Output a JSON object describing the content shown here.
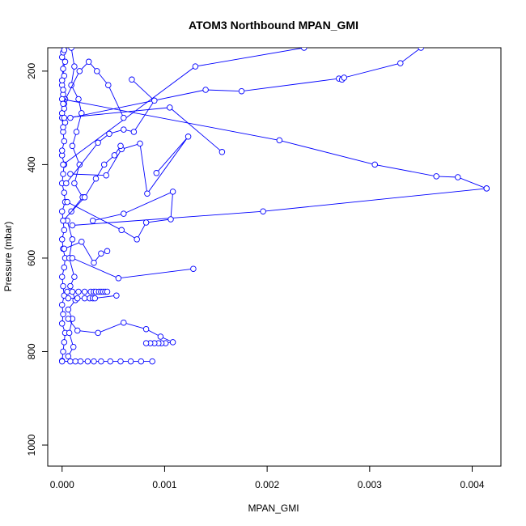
{
  "chart_data": {
    "type": "line",
    "title": "ATOM3 Northbound MPAN_GMI",
    "xlabel": "MPAN_GMI",
    "ylabel": "Pressure (mbar)",
    "xlim": [
      -0.00014,
      0.00428
    ],
    "ylim": [
      1045,
      150
    ],
    "y_reversed": true,
    "x_ticks": [
      0.0,
      0.001,
      0.002,
      0.003,
      0.004
    ],
    "x_tick_labels": [
      "0.000",
      "0.001",
      "0.002",
      "0.003",
      "0.004"
    ],
    "y_ticks": [
      200,
      400,
      600,
      800,
      1000
    ],
    "y_tick_labels": [
      "200",
      "400",
      "600",
      "800",
      "1000"
    ],
    "grid": false,
    "legend": "none",
    "marker": "open-circle",
    "color": "#0000ff",
    "series": [
      {
        "x": [
          0.0,
          1e-05,
          2e-05,
          3e-05,
          0.0,
          1e-05,
          0.0,
          2e-05,
          1e-05,
          0.0,
          2e-05,
          3e-05,
          1e-05,
          0.0,
          2e-05,
          1e-05,
          0.0,
          3e-05,
          2e-05,
          0.0,
          1e-05,
          2e-05,
          0.0
        ],
        "y": [
          820,
          800,
          780,
          760,
          740,
          720,
          700,
          680,
          660,
          640,
          620,
          600,
          580,
          560,
          540,
          520,
          500,
          480,
          460,
          440,
          420,
          400,
          380
        ]
      },
      {
        "x": [
          0.0,
          2e-05,
          1e-05,
          3e-05,
          0.0,
          2e-05,
          1e-05,
          0.0,
          2e-05,
          1e-05,
          3e-05,
          0.0,
          1e-05,
          2e-05,
          0.0,
          1e-05,
          3e-05,
          2e-05,
          0.0,
          1e-05
        ],
        "y": [
          370,
          350,
          330,
          310,
          290,
          270,
          250,
          230,
          210,
          195,
          180,
          170,
          160,
          155,
          220,
          240,
          260,
          280,
          300,
          320
        ]
      },
      {
        "x": [
          9e-05,
          0.00012,
          9e-05,
          0.00016,
          0.00019,
          0.00014,
          0.0001,
          0.00017,
          0.00012,
          0.0002,
          9e-05
        ],
        "y": [
          150,
          190,
          230,
          260,
          290,
          330,
          360,
          400,
          440,
          470,
          500
        ]
      },
      {
        "x": [
          5e-05,
          0.0001,
          7e-05,
          0.00012,
          8e-05,
          0.00013,
          6e-05,
          0.0001,
          7e-05,
          0.00011,
          6e-05
        ],
        "y": [
          520,
          560,
          600,
          640,
          660,
          690,
          710,
          730,
          760,
          790,
          810
        ]
      },
      {
        "x": [
          0.0,
          8e-05,
          0.00013,
          0.00018,
          0.00025,
          0.00031,
          0.00038,
          0.00047,
          0.00057,
          0.00067,
          0.00077,
          0.00088
        ],
        "y": [
          821,
          821,
          821,
          821,
          821,
          821,
          821,
          821,
          821,
          821,
          821,
          821
        ]
      },
      {
        "x": [
          6e-05,
          0.00015,
          0.00035,
          0.0006,
          0.00082,
          0.00096,
          0.00108,
          0.00101,
          0.00097,
          0.00094,
          0.0009,
          0.00086,
          0.00082
        ],
        "y": [
          730,
          755,
          760,
          738,
          752,
          768,
          780,
          782,
          782,
          782,
          782,
          782,
          782
        ]
      },
      {
        "x": [
          5e-05,
          0.0001,
          0.00016,
          0.00022,
          0.00028,
          0.00031,
          0.00033,
          0.00036,
          0.00038,
          0.0004,
          0.00042,
          0.00044
        ],
        "y": [
          672,
          672,
          672,
          672,
          672,
          672,
          672,
          672,
          672,
          672,
          672,
          672
        ]
      },
      {
        "x": [
          6e-05,
          0.00015,
          0.00022,
          0.00027,
          0.0003,
          0.00032,
          0.00053
        ],
        "y": [
          686,
          686,
          686,
          686,
          686,
          686,
          680
        ]
      },
      {
        "x": [
          0.0001,
          0.00055,
          0.00128
        ],
        "y": [
          600,
          643,
          623
        ]
      },
      {
        "x": [
          0.0001,
          0.00196,
          0.00414
        ],
        "y": [
          530,
          500,
          451
        ]
      },
      {
        "x": [
          0.0,
          0.00212,
          0.00305,
          0.00365,
          0.00386,
          0.00414
        ],
        "y": [
          260,
          348,
          400,
          425,
          427,
          451
        ]
      },
      {
        "x": [
          5e-05,
          0.00058,
          0.00073,
          0.00082,
          0.00106,
          0.00108,
          0.0006,
          0.0003
        ],
        "y": [
          480,
          540,
          560,
          524,
          517,
          458,
          505,
          520
        ]
      },
      {
        "x": [
          2e-05,
          0.00105,
          0.00156
        ],
        "y": [
          300,
          278,
          373
        ]
      },
      {
        "x": [
          1e-05,
          0.0013,
          0.00236
        ],
        "y": [
          400,
          190,
          150
        ]
      },
      {
        "x": [
          8e-05,
          0.0014,
          0.00175,
          0.0027,
          0.00273,
          0.00275,
          0.0033,
          0.0035
        ],
        "y": [
          300,
          240,
          243,
          216,
          218,
          214,
          183,
          150
        ]
      },
      {
        "x": [
          8e-05,
          0.00043,
          0.00058,
          0.00076,
          0.00083,
          0.00123,
          0.00092
        ],
        "y": [
          420,
          423,
          367,
          355,
          462,
          340,
          418
        ]
      },
      {
        "x": [
          4e-05,
          0.00035,
          0.00046,
          0.0006,
          0.0007,
          0.0009,
          0.00068
        ],
        "y": [
          440,
          353,
          334,
          325,
          330,
          263,
          218
        ]
      },
      {
        "x": [
          1e-05,
          0.00017,
          0.00026,
          0.00034,
          0.00045,
          0.0006
        ],
        "y": [
          270,
          200,
          180,
          200,
          230,
          300
        ]
      },
      {
        "x": [
          1e-05,
          0.00022,
          0.00033,
          0.00041,
          0.00051,
          0.00057
        ],
        "y": [
          520,
          470,
          430,
          400,
          380,
          360
        ]
      },
      {
        "x": [
          2e-05,
          0.00019,
          0.00031,
          0.00038,
          0.00044
        ],
        "y": [
          580,
          565,
          610,
          590,
          585
        ]
      }
    ]
  }
}
